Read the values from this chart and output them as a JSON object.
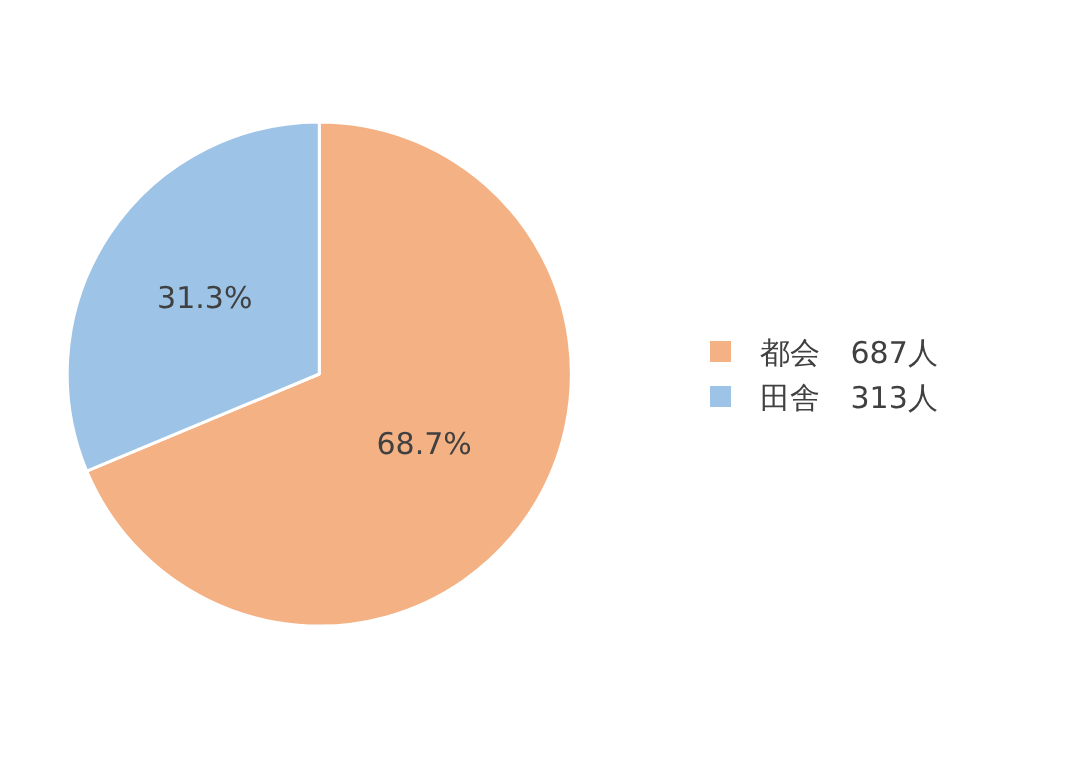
{
  "chart_data": {
    "type": "pie",
    "categories": [
      "都会　687人",
      "田舎　313人"
    ],
    "values": [
      68.7,
      31.3
    ],
    "colors": [
      "#f4b183",
      "#9dc3e6"
    ],
    "value_labels": [
      "68.7%",
      "31.3%"
    ],
    "legend": "right"
  }
}
